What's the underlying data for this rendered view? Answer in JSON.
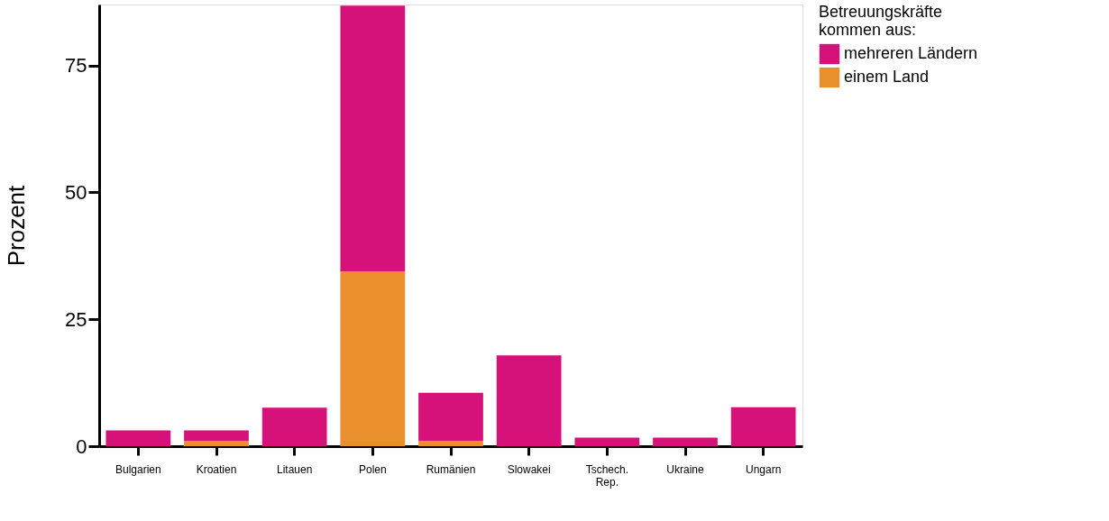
{
  "chart_data": {
    "type": "bar",
    "stacked": true,
    "ylabel": "Prozent",
    "legend_title": "Betreuungskräfte kommen aus:",
    "categories": [
      "Bulgarien",
      "Kroatien",
      "Litauen",
      "Polen",
      "Rumänien",
      "Slowakei",
      "Tschech. Rep.",
      "Ukraine",
      "Ungarn"
    ],
    "series": [
      {
        "name": "einem Land",
        "color": "#e98f2e",
        "values": [
          0,
          1,
          0,
          34.4,
          1,
          0,
          0,
          0,
          0
        ]
      },
      {
        "name": "mehreren Ländern",
        "color": "#d6127a",
        "values": [
          3.1,
          2.1,
          7.6,
          52.4,
          9.5,
          17.9,
          1.7,
          1.7,
          7.7
        ]
      }
    ],
    "ylim": [
      0,
      87
    ],
    "yticks": [
      0,
      25,
      50,
      75
    ],
    "grid": false,
    "legend": "right"
  }
}
